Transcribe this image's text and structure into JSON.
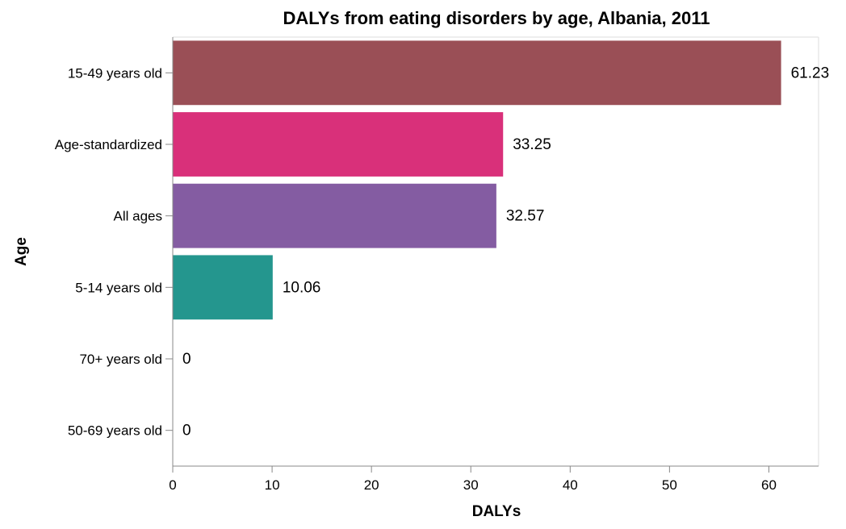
{
  "chart_data": {
    "type": "bar",
    "orientation": "horizontal",
    "title": "DALYs from eating disorders by age, Albania, 2011",
    "xlabel": "DALYs",
    "ylabel": "Age",
    "xlim": [
      0,
      65
    ],
    "x_ticks": [
      "0",
      "10",
      "20",
      "30",
      "40",
      "50",
      "60"
    ],
    "categories": [
      "15-49 years old",
      "Age-standardized",
      "All ages",
      "5-14 years old",
      "70+ years old",
      "50-69 years old"
    ],
    "values": [
      61.23,
      33.25,
      32.57,
      10.06,
      0,
      0
    ],
    "value_labels": [
      "61.23",
      "33.25",
      "32.57",
      "10.06",
      "0",
      "0"
    ],
    "colors": [
      "#9a4f56",
      "#d9307a",
      "#845ca2",
      "#24968e",
      "#7a7a7a",
      "#7a7a7a"
    ],
    "grid": false,
    "legend": "none"
  }
}
